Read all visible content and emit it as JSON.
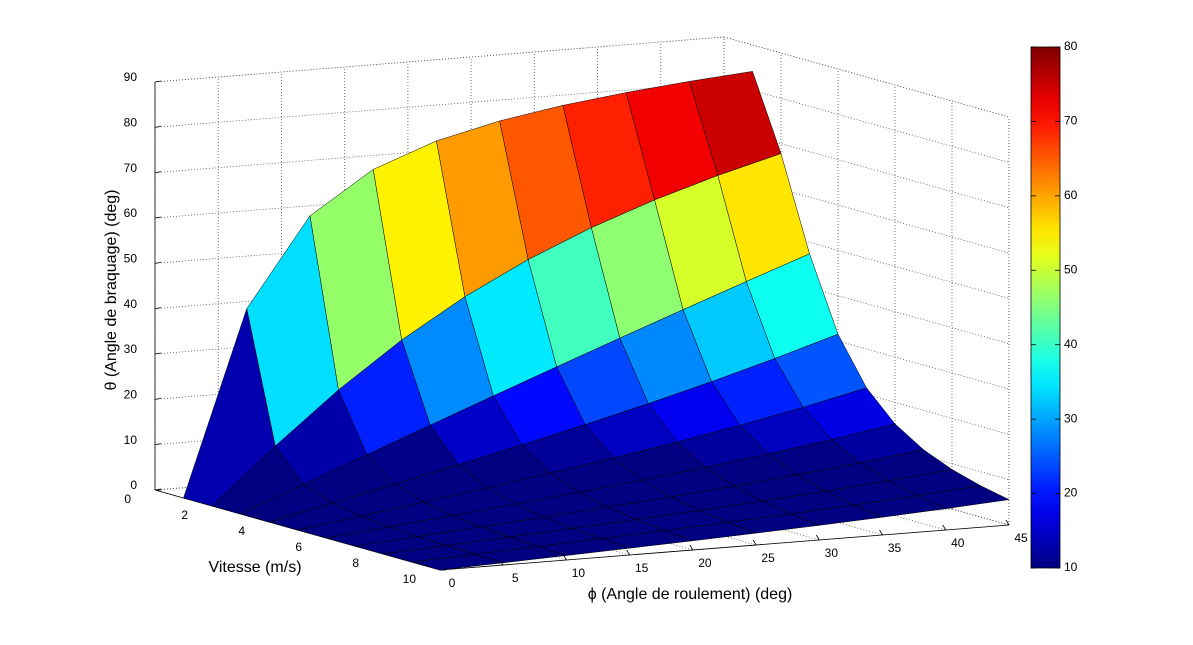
{
  "chart_data": {
    "type": "surface",
    "xlabel": "Vitesse (m/s)",
    "ylabel": "ϕ (Angle de roulement) (deg)",
    "zlabel": "θ (Angle de braquage) (deg)",
    "x": [
      1,
      2,
      3,
      4,
      5,
      6,
      7,
      8,
      9,
      10
    ],
    "y": [
      0,
      5,
      10,
      15,
      20,
      25,
      30,
      35,
      40,
      45
    ],
    "z": [
      [
        0,
        40.64,
        60.03,
        69.17,
        74.35,
        77.66,
        79.99,
        81.71,
        83.07,
        84.18
      ],
      [
        0,
        12.11,
        23.39,
        33.31,
        41.76,
        48.84,
        54.77,
        59.79,
        64.08,
        67.81
      ],
      [
        0,
        5.45,
        10.88,
        16.28,
        21.64,
        26.94,
        32.18,
        37.35,
        42.45,
        47.47
      ],
      [
        0,
        3.07,
        6.17,
        9.33,
        12.58,
        15.96,
        19.49,
        23.23,
        27.23,
        31.51
      ],
      [
        0,
        1.97,
        3.96,
        6.0,
        8.13,
        10.37,
        12.77,
        15.36,
        18.23,
        21.43
      ],
      [
        0,
        1.37,
        2.75,
        4.18,
        5.66,
        7.24,
        8.94,
        10.8,
        12.88,
        15.24
      ],
      [
        0,
        1.0,
        2.02,
        3.07,
        4.17,
        5.33,
        6.59,
        7.98,
        9.54,
        11.32
      ],
      [
        0,
        0.77,
        1.55,
        2.35,
        3.19,
        4.09,
        5.06,
        6.13,
        7.33,
        8.72
      ],
      [
        0,
        0.61,
        1.22,
        1.86,
        2.52,
        3.23,
        4.0,
        4.85,
        5.8,
        6.91
      ],
      [
        0,
        0.49,
        0.99,
        1.51,
        2.04,
        2.62,
        3.24,
        3.93,
        4.71,
        5.6
      ]
    ],
    "xlim": [
      0,
      10
    ],
    "xticks": [
      0,
      2,
      4,
      6,
      8,
      10
    ],
    "ylim": [
      0,
      45
    ],
    "yticks": [
      0,
      5,
      10,
      15,
      20,
      25,
      30,
      35,
      40,
      45
    ],
    "zlim": [
      0,
      90
    ],
    "zticks": [
      0,
      10,
      20,
      30,
      40,
      50,
      60,
      70,
      80,
      90
    ],
    "colormap": "jet",
    "clim": [
      10,
      80
    ],
    "cticks": [
      10,
      20,
      30,
      40,
      50,
      60,
      70,
      80
    ],
    "grid": true
  }
}
